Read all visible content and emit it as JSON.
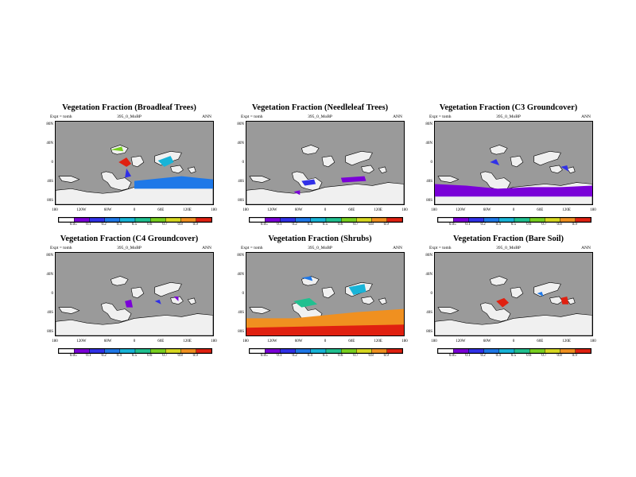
{
  "colors": {
    "land": "#9a9a9a",
    "ocean": "#ffffff",
    "scale": [
      "#ffffff",
      "#7a00d8",
      "#3030e8",
      "#1e78e8",
      "#18b4d8",
      "#20c090",
      "#78d020",
      "#d8d820",
      "#f09020",
      "#e02010"
    ]
  },
  "colorbar_ticks": [
    "0.05",
    "0.1",
    "0.2",
    "0.4",
    "0.5",
    "0.6",
    "0.7",
    "0.8",
    "0.9"
  ],
  "lat_labels": [
    "80N",
    "40N",
    "0",
    "40S",
    "80S"
  ],
  "lon_labels": [
    "180",
    "120W",
    "60W",
    "0",
    "60E",
    "120E",
    "180"
  ],
  "panels": [
    {
      "title": "Vegetation Fraction (Broadleaf Trees)",
      "left_label": "Expt = tomh",
      "center_label": "395_0_MoBP",
      "right_label": "ANN"
    },
    {
      "title": "Vegetation Fraction (Needleleaf Trees)",
      "left_label": "Expt = tomh",
      "center_label": "395_0_MoBP",
      "right_label": "ANN"
    },
    {
      "title": "Vegetation Fraction (C3 Groundcover)",
      "left_label": "Expt = tomh",
      "center_label": "395_0_MoBP",
      "right_label": "ANN"
    },
    {
      "title": "Vegetation Fraction (C4 Groundcover)",
      "left_label": "Expt = tomh",
      "center_label": "395_0_MoBP",
      "right_label": "ANN"
    },
    {
      "title": "Vegetation Fraction (Shrubs)",
      "left_label": "Expt = tomh",
      "center_label": "395_0_MoBP",
      "right_label": "ANN"
    },
    {
      "title": "Vegetation Fraction (Bare Soil)",
      "left_label": "Expt = tomh",
      "center_label": "395_0_MoBP",
      "right_label": "ANN"
    }
  ]
}
